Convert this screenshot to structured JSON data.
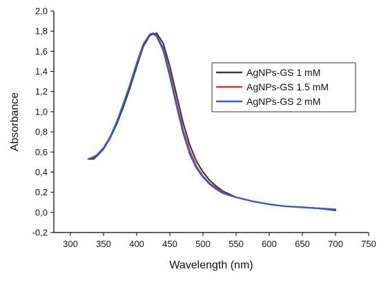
{
  "chart_data": {
    "type": "line",
    "title": "",
    "xlabel": "Wavelength (nm)",
    "ylabel": "Absorbance",
    "xlim": [
      275,
      750
    ],
    "ylim": [
      -0.2,
      2.0
    ],
    "x_ticks": [
      300,
      350,
      400,
      450,
      500,
      550,
      600,
      650,
      700,
      750
    ],
    "y_ticks": [
      -0.2,
      0.0,
      0.2,
      0.4,
      0.6,
      0.8,
      1.0,
      1.2,
      1.4,
      1.6,
      1.8,
      2.0
    ],
    "decimal_separator": ",",
    "grid": false,
    "legend_position": "top-right",
    "series": [
      {
        "name": "AgNPs-GS 1 mM",
        "color": "#3a3a3a",
        "points": [
          [
            327,
            0.53
          ],
          [
            330,
            0.53
          ],
          [
            335,
            0.53
          ],
          [
            340,
            0.56
          ],
          [
            350,
            0.63
          ],
          [
            360,
            0.74
          ],
          [
            370,
            0.88
          ],
          [
            380,
            1.05
          ],
          [
            390,
            1.24
          ],
          [
            400,
            1.45
          ],
          [
            410,
            1.65
          ],
          [
            420,
            1.76
          ],
          [
            430,
            1.78
          ],
          [
            440,
            1.68
          ],
          [
            450,
            1.45
          ],
          [
            460,
            1.17
          ],
          [
            470,
            0.89
          ],
          [
            480,
            0.67
          ],
          [
            490,
            0.51
          ],
          [
            500,
            0.4
          ],
          [
            510,
            0.32
          ],
          [
            520,
            0.26
          ],
          [
            530,
            0.21
          ],
          [
            540,
            0.18
          ],
          [
            550,
            0.15
          ],
          [
            575,
            0.11
          ],
          [
            600,
            0.08
          ],
          [
            625,
            0.06
          ],
          [
            650,
            0.05
          ],
          [
            675,
            0.04
          ],
          [
            700,
            0.02
          ]
        ]
      },
      {
        "name": "AgNPs-GS 1.5 mM",
        "color": "#e8302a",
        "points": [
          [
            327,
            0.53
          ],
          [
            335,
            0.55
          ],
          [
            340,
            0.57
          ],
          [
            350,
            0.64
          ],
          [
            360,
            0.75
          ],
          [
            370,
            0.9
          ],
          [
            380,
            1.08
          ],
          [
            390,
            1.27
          ],
          [
            400,
            1.48
          ],
          [
            410,
            1.67
          ],
          [
            420,
            1.77
          ],
          [
            425,
            1.78
          ],
          [
            430,
            1.76
          ],
          [
            440,
            1.63
          ],
          [
            450,
            1.38
          ],
          [
            460,
            1.09
          ],
          [
            470,
            0.82
          ],
          [
            480,
            0.61
          ],
          [
            490,
            0.46
          ],
          [
            500,
            0.36
          ],
          [
            510,
            0.29
          ],
          [
            520,
            0.24
          ],
          [
            530,
            0.2
          ],
          [
            540,
            0.17
          ],
          [
            550,
            0.15
          ],
          [
            575,
            0.11
          ],
          [
            600,
            0.08
          ],
          [
            625,
            0.06
          ],
          [
            650,
            0.05
          ],
          [
            675,
            0.04
          ],
          [
            700,
            0.03
          ]
        ]
      },
      {
        "name": "AgNPs-GS 2 mM",
        "color": "#2a5fd6",
        "points": [
          [
            327,
            0.53
          ],
          [
            335,
            0.55
          ],
          [
            340,
            0.57
          ],
          [
            350,
            0.64
          ],
          [
            360,
            0.75
          ],
          [
            370,
            0.9
          ],
          [
            380,
            1.08
          ],
          [
            390,
            1.27
          ],
          [
            400,
            1.48
          ],
          [
            410,
            1.67
          ],
          [
            420,
            1.77
          ],
          [
            425,
            1.77
          ],
          [
            430,
            1.75
          ],
          [
            440,
            1.61
          ],
          [
            450,
            1.35
          ],
          [
            460,
            1.06
          ],
          [
            470,
            0.79
          ],
          [
            480,
            0.58
          ],
          [
            490,
            0.44
          ],
          [
            500,
            0.35
          ],
          [
            510,
            0.28
          ],
          [
            520,
            0.23
          ],
          [
            530,
            0.19
          ],
          [
            540,
            0.17
          ],
          [
            550,
            0.15
          ],
          [
            575,
            0.11
          ],
          [
            600,
            0.08
          ],
          [
            625,
            0.06
          ],
          [
            650,
            0.05
          ],
          [
            675,
            0.04
          ],
          [
            700,
            0.03
          ]
        ]
      }
    ]
  }
}
